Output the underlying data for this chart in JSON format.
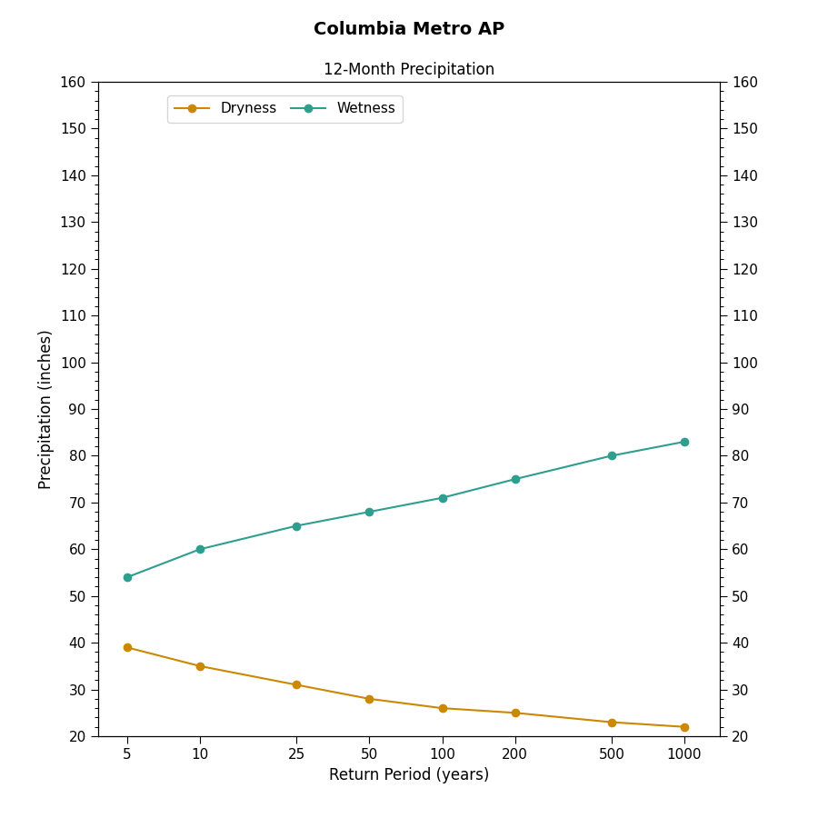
{
  "title": "Columbia Metro AP",
  "subtitle": "12-Month Precipitation",
  "xlabel": "Return Period (years)",
  "ylabel": "Precipitation (inches)",
  "x_values": [
    5,
    10,
    25,
    50,
    100,
    200,
    500,
    1000
  ],
  "dryness_values": [
    39,
    35,
    31,
    28,
    26,
    25,
    23,
    22
  ],
  "wetness_values": [
    54,
    60,
    65,
    68,
    71,
    75,
    80,
    83
  ],
  "dryness_color": "#CC8800",
  "wetness_color": "#2E9E8E",
  "ylim": [
    20,
    160
  ],
  "yticks": [
    20,
    30,
    40,
    50,
    60,
    70,
    80,
    90,
    100,
    110,
    120,
    130,
    140,
    150,
    160
  ],
  "background_color": "#FFFFFF",
  "title_fontsize": 14,
  "subtitle_fontsize": 12,
  "label_fontsize": 12,
  "tick_fontsize": 11,
  "legend_labels": [
    "Dryness",
    "Wetness"
  ],
  "marker": "o",
  "markersize": 6,
  "linewidth": 1.5
}
